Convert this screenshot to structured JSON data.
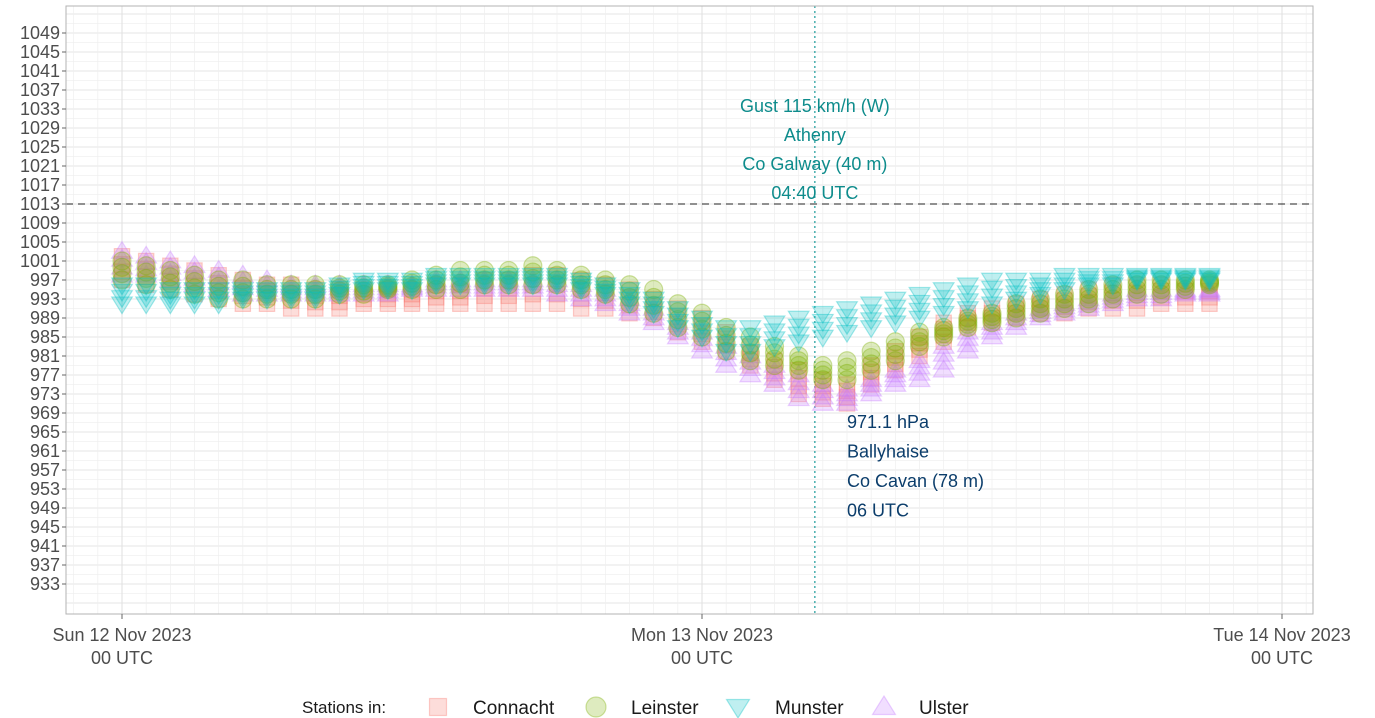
{
  "chart_data": {
    "type": "scatter",
    "title": "",
    "xlabel": "",
    "ylabel": "",
    "ylim": [
      929,
      1053
    ],
    "y_ticks": [
      933,
      937,
      941,
      945,
      949,
      953,
      957,
      961,
      965,
      969,
      973,
      977,
      981,
      985,
      989,
      993,
      997,
      1001,
      1005,
      1009,
      1013,
      1017,
      1021,
      1025,
      1029,
      1033,
      1037,
      1041,
      1045,
      1049
    ],
    "x_ticks": [
      {
        "hour": 0,
        "line1": "Sun 12 Nov 2023",
        "line2": "00 UTC"
      },
      {
        "hour": 24,
        "line1": "Mon 13 Nov 2023",
        "line2": "00 UTC"
      },
      {
        "hour": 48,
        "line1": "Tue 14 Nov 2023",
        "line2": "00 UTC"
      }
    ],
    "reference_line": 1013,
    "gust_time_hour": 28.67,
    "annotation_gust": [
      "Gust 115 km/h (W)",
      "Athenry",
      "Co Galway (40 m)",
      "04:40 UTC"
    ],
    "annotation_min": [
      "971.1 hPa",
      "Ballyhaise",
      "Co Cavan (78 m)",
      "06 UTC"
    ],
    "legend_title": "Stations in:",
    "legend_position": "bottom",
    "series": [
      {
        "name": "Connacht",
        "shape": "square",
        "color": "#F8766D",
        "hours": [
          0,
          1,
          2,
          3,
          4,
          5,
          6,
          7,
          8,
          9,
          10,
          11,
          12,
          13,
          14,
          15,
          16,
          17,
          18,
          19,
          20,
          21,
          22,
          23,
          24,
          25,
          26,
          27,
          28,
          29,
          30,
          31,
          32,
          33,
          34,
          35,
          36,
          37,
          38,
          39,
          40,
          41,
          42,
          43,
          44,
          45
        ],
        "min": [
          997,
          996,
          995,
          994,
          993,
          992,
          992,
          991,
          991,
          991,
          992,
          992,
          992,
          992,
          992,
          992,
          992,
          992,
          992,
          991,
          991,
          990,
          989,
          986,
          984,
          982,
          979,
          976,
          973,
          972,
          971,
          975,
          978,
          981,
          984,
          987,
          988,
          989,
          990,
          990,
          991,
          991,
          991,
          992,
          992,
          992
        ],
        "max": [
          1002,
          1001,
          1000,
          999,
          998,
          997,
          996,
          996,
          995,
          995,
          995,
          995,
          995,
          996,
          996,
          997,
          997,
          998,
          998,
          997,
          996,
          995,
          993,
          991,
          989,
          986,
          983,
          980,
          978,
          976,
          975,
          979,
          982,
          985,
          988,
          990,
          991,
          992,
          993,
          994,
          995,
          996,
          996,
          996,
          996,
          996
        ]
      },
      {
        "name": "Leinster",
        "shape": "circle",
        "color": "#7CAE00",
        "hours": [
          0,
          1,
          2,
          3,
          4,
          5,
          6,
          7,
          8,
          9,
          10,
          11,
          12,
          13,
          14,
          15,
          16,
          17,
          18,
          19,
          20,
          21,
          22,
          23,
          24,
          25,
          26,
          27,
          28,
          29,
          30,
          31,
          32,
          33,
          34,
          35,
          36,
          37,
          38,
          39,
          40,
          41,
          42,
          43,
          44,
          45
        ],
        "min": [
          997,
          996,
          995,
          994,
          993,
          993,
          993,
          993,
          993,
          994,
          994,
          995,
          995,
          995,
          995,
          996,
          996,
          996,
          996,
          995,
          994,
          992,
          990,
          987,
          985,
          982,
          980,
          979,
          978,
          976,
          976,
          978,
          980,
          983,
          985,
          987,
          988,
          989,
          990,
          991,
          992,
          993,
          994,
          994,
          995,
          996
        ],
        "max": [
          1001,
          1000,
          999,
          998,
          997,
          997,
          996,
          996,
          996,
          996,
          996,
          996,
          997,
          998,
          999,
          999,
          999,
          1000,
          999,
          998,
          997,
          996,
          995,
          992,
          990,
          987,
          985,
          983,
          981,
          979,
          980,
          982,
          984,
          986,
          987,
          989,
          990,
          992,
          993,
          994,
          995,
          996,
          997,
          997,
          997,
          997
        ]
      },
      {
        "name": "Munster",
        "shape": "triangle-down",
        "color": "#00BFC4",
        "hours": [
          0,
          1,
          2,
          3,
          4,
          5,
          6,
          7,
          8,
          9,
          10,
          11,
          12,
          13,
          14,
          15,
          16,
          17,
          18,
          19,
          20,
          21,
          22,
          23,
          24,
          25,
          26,
          27,
          28,
          29,
          30,
          31,
          32,
          33,
          34,
          35,
          36,
          37,
          38,
          39,
          40,
          41,
          42,
          43,
          44,
          45
        ],
        "min": [
          992,
          992,
          992,
          992,
          992,
          993,
          993,
          993,
          993,
          994,
          995,
          995,
          995,
          996,
          996,
          996,
          996,
          996,
          996,
          995,
          994,
          992,
          990,
          987,
          985,
          982,
          982,
          983,
          984,
          985,
          986,
          987,
          988,
          989,
          990,
          991,
          992,
          993,
          994,
          995,
          996,
          996,
          997,
          997,
          997,
          997
        ],
        "max": [
          996,
          996,
          995,
          995,
          995,
          995,
          995,
          995,
          995,
          996,
          997,
          997,
          997,
          998,
          998,
          998,
          998,
          998,
          998,
          997,
          996,
          995,
          993,
          991,
          989,
          987,
          987,
          988,
          989,
          990,
          991,
          992,
          993,
          994,
          995,
          996,
          997,
          997,
          997,
          998,
          998,
          998,
          998,
          998,
          998,
          998
        ]
      },
      {
        "name": "Ulster",
        "shape": "triangle-up",
        "color": "#C77CFF",
        "hours": [
          0,
          1,
          2,
          3,
          4,
          5,
          6,
          7,
          8,
          9,
          10,
          11,
          12,
          13,
          14,
          15,
          16,
          17,
          18,
          19,
          20,
          21,
          22,
          23,
          24,
          25,
          26,
          27,
          28,
          29,
          30,
          31,
          32,
          33,
          34,
          35,
          36,
          37,
          38,
          39,
          40,
          41,
          42,
          43,
          44,
          45
        ],
        "min": [
          998,
          998,
          997,
          996,
          995,
          994,
          994,
          994,
          994,
          994,
          994,
          994,
          995,
          995,
          995,
          995,
          995,
          995,
          994,
          993,
          992,
          990,
          988,
          985,
          982,
          979,
          977,
          975,
          972,
          971,
          971,
          973,
          975,
          976,
          978,
          982,
          985,
          987,
          989,
          990,
          991,
          992,
          993,
          993,
          994,
          994
        ],
        "max": [
          1003,
          1002,
          1001,
          1000,
          999,
          998,
          997,
          996,
          996,
          996,
          996,
          996,
          996,
          997,
          997,
          997,
          997,
          997,
          997,
          996,
          995,
          993,
          991,
          988,
          986,
          983,
          981,
          979,
          977,
          975,
          974,
          976,
          978,
          980,
          983,
          986,
          988,
          990,
          991,
          992,
          993,
          994,
          995,
          995,
          995,
          995
        ]
      }
    ]
  }
}
